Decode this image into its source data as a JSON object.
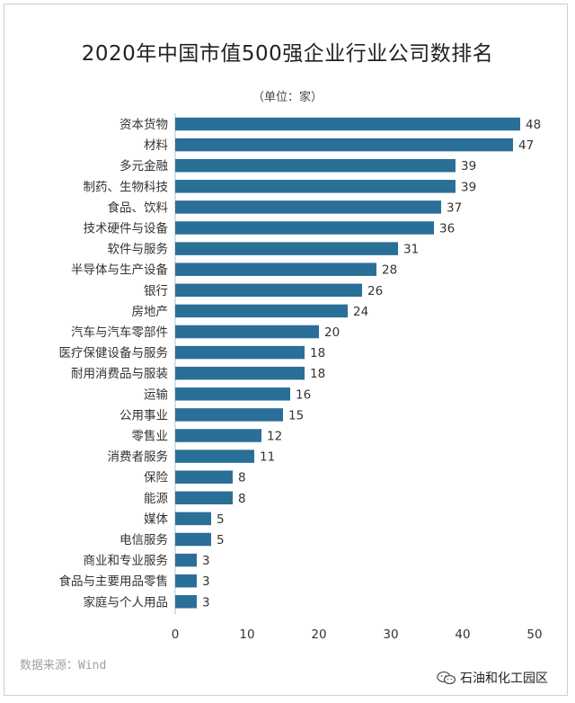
{
  "title": "2020年中国市值500强企业行业公司数排名",
  "unit_label": "（单位：家）",
  "source": "数据来源：Wind",
  "watermark": "石油和化工园区",
  "colors": {
    "bar": "#2a6f97",
    "axis": "#bfbfbf",
    "text": "#333333"
  },
  "chart_data": {
    "type": "bar",
    "orientation": "horizontal",
    "title": "2020年中国市值500强企业行业公司数排名",
    "xlabel": "",
    "ylabel": "",
    "xlim": [
      0,
      50
    ],
    "xticks": [
      0,
      10,
      20,
      30,
      40,
      50
    ],
    "grid": false,
    "categories": [
      "资本货物",
      "材料",
      "多元金融",
      "制药、生物科技",
      "食品、饮料",
      "技术硬件与设备",
      "软件与服务",
      "半导体与生产设备",
      "银行",
      "房地产",
      "汽车与汽车零部件",
      "医疗保健设备与服务",
      "耐用消费品与服装",
      "运输",
      "公用事业",
      "零售业",
      "消费者服务",
      "保险",
      "能源",
      "媒体",
      "电信服务",
      "商业和专业服务",
      "食品与主要用品零售",
      "家庭与个人用品"
    ],
    "values": [
      48,
      47,
      39,
      39,
      37,
      36,
      31,
      28,
      26,
      24,
      20,
      18,
      18,
      16,
      15,
      12,
      11,
      8,
      8,
      5,
      5,
      3,
      3,
      3
    ]
  }
}
